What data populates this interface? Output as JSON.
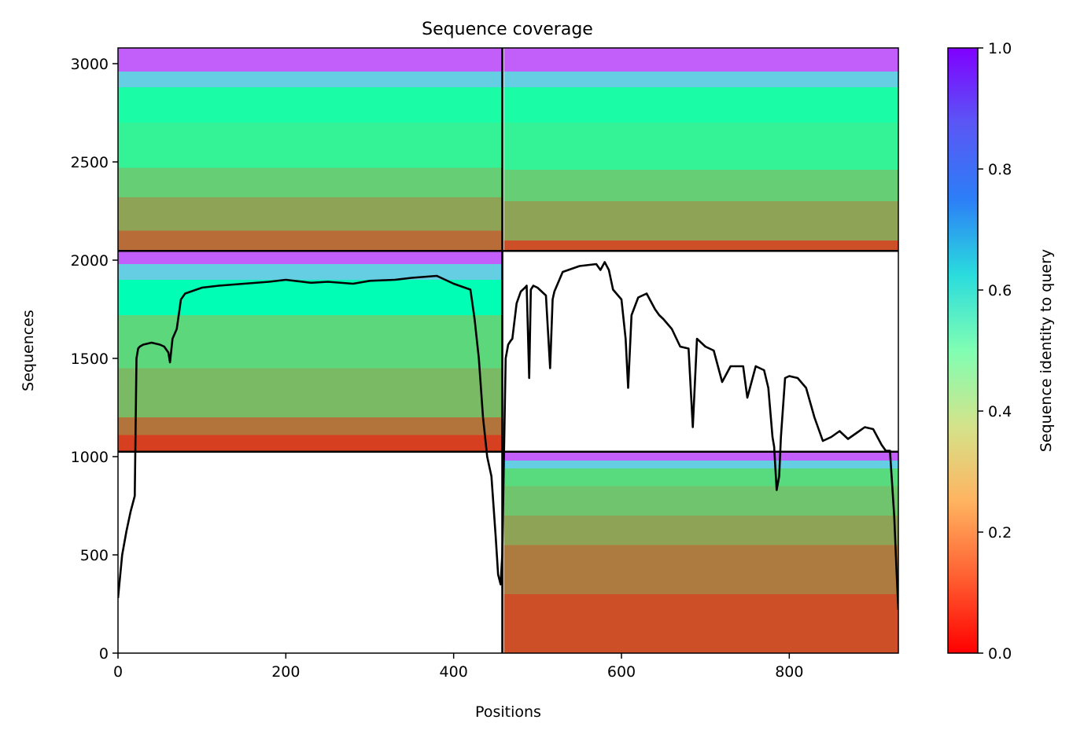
{
  "chart_data": {
    "type": "heatmap",
    "title": "Sequence coverage",
    "xlabel": "Positions",
    "ylabel": "Sequences",
    "xlim": [
      0,
      930
    ],
    "ylim": [
      0,
      3080
    ],
    "x_ticks": [
      0,
      200,
      400,
      600,
      800
    ],
    "y_ticks": [
      0,
      500,
      1000,
      1500,
      2000,
      2500,
      3000
    ],
    "colorbar": {
      "label": "Sequence identity to query",
      "range": [
        0.0,
        1.0
      ],
      "ticks": [
        "0.0",
        "0.2",
        "0.4",
        "0.6",
        "0.8",
        "1.0"
      ],
      "colormap": "rainbow_r"
    },
    "blocks": [
      {
        "name": "top-left",
        "x_range": [
          0,
          458
        ],
        "y_range": [
          2047,
          3080
        ],
        "bands": [
          {
            "y": [
              2047,
              2150
            ],
            "identity": 0.14
          },
          {
            "y": [
              2150,
              2320
            ],
            "identity": 0.22
          },
          {
            "y": [
              2320,
              2470
            ],
            "identity": 0.3
          },
          {
            "y": [
              2470,
              2700
            ],
            "identity": 0.4
          },
          {
            "y": [
              2700,
              2880
            ],
            "identity": 0.45
          },
          {
            "y": [
              2880,
              2960
            ],
            "identity": 0.7
          },
          {
            "y": [
              2960,
              3080
            ],
            "identity": 0.88
          }
        ]
      },
      {
        "name": "top-right",
        "x_range": [
          460,
          930
        ],
        "y_range": [
          2047,
          3080
        ],
        "bands": [
          {
            "y": [
              2047,
              2100
            ],
            "identity": 0.1
          },
          {
            "y": [
              2100,
              2300
            ],
            "identity": 0.22
          },
          {
            "y": [
              2300,
              2460
            ],
            "identity": 0.3
          },
          {
            "y": [
              2460,
              2700
            ],
            "identity": 0.4
          },
          {
            "y": [
              2700,
              2880
            ],
            "identity": 0.45
          },
          {
            "y": [
              2880,
              2960
            ],
            "identity": 0.7
          },
          {
            "y": [
              2960,
              3080
            ],
            "identity": 0.88
          }
        ]
      },
      {
        "name": "mid-left",
        "x_range": [
          0,
          458
        ],
        "y_range": [
          1025,
          2047
        ],
        "bands": [
          {
            "y": [
              1025,
              1110
            ],
            "identity": 0.08
          },
          {
            "y": [
              1110,
              1200
            ],
            "identity": 0.15
          },
          {
            "y": [
              1200,
              1450
            ],
            "identity": 0.26
          },
          {
            "y": [
              1450,
              1720
            ],
            "identity": 0.32
          },
          {
            "y": [
              1720,
              1900
            ],
            "identity": 0.5
          },
          {
            "y": [
              1900,
              1980
            ],
            "identity": 0.7
          },
          {
            "y": [
              1980,
              2047
            ],
            "identity": 0.88
          }
        ]
      },
      {
        "name": "bottom-right",
        "x_range": [
          460,
          930
        ],
        "y_range": [
          0,
          1025
        ],
        "bands": [
          {
            "y": [
              0,
              300
            ],
            "identity": 0.1
          },
          {
            "y": [
              300,
              550
            ],
            "identity": 0.16
          },
          {
            "y": [
              550,
              700
            ],
            "identity": 0.22
          },
          {
            "y": [
              700,
              850
            ],
            "identity": 0.28
          },
          {
            "y": [
              850,
              940
            ],
            "identity": 0.33
          },
          {
            "y": [
              940,
              980
            ],
            "identity": 0.7
          },
          {
            "y": [
              980,
              1025
            ],
            "identity": 0.88
          }
        ]
      }
    ],
    "block_dividers": {
      "x": [
        458
      ],
      "y": [
        1025,
        2047
      ]
    },
    "coverage_line": {
      "x": [
        0,
        5,
        10,
        15,
        20,
        22,
        24,
        26,
        30,
        40,
        50,
        55,
        60,
        62,
        65,
        70,
        75,
        80,
        100,
        120,
        150,
        180,
        200,
        230,
        250,
        280,
        300,
        330,
        350,
        380,
        400,
        420,
        425,
        430,
        435,
        440,
        445,
        450,
        453,
        456,
        458,
        460,
        462,
        465,
        468,
        470,
        475,
        480,
        485,
        487,
        490,
        492,
        495,
        500,
        510,
        515,
        518,
        520,
        530,
        550,
        570,
        575,
        580,
        585,
        590,
        600,
        605,
        608,
        612,
        620,
        630,
        640,
        645,
        650,
        660,
        670,
        680,
        685,
        690,
        700,
        710,
        720,
        730,
        740,
        745,
        750,
        760,
        770,
        775,
        780,
        782,
        785,
        788,
        790,
        795,
        800,
        810,
        820,
        830,
        840,
        850,
        860,
        870,
        880,
        890,
        900,
        910,
        915,
        920,
        925,
        928,
        930
      ],
      "y": [
        280,
        500,
        620,
        720,
        800,
        1500,
        1550,
        1560,
        1570,
        1580,
        1570,
        1560,
        1530,
        1480,
        1600,
        1650,
        1800,
        1830,
        1860,
        1870,
        1880,
        1890,
        1900,
        1885,
        1890,
        1880,
        1895,
        1900,
        1910,
        1920,
        1880,
        1850,
        1700,
        1500,
        1200,
        1000,
        900,
        600,
        400,
        350,
        500,
        1020,
        1500,
        1570,
        1590,
        1600,
        1780,
        1840,
        1860,
        1870,
        1400,
        1850,
        1870,
        1860,
        1820,
        1450,
        1800,
        1840,
        1940,
        1970,
        1980,
        1950,
        1990,
        1950,
        1850,
        1800,
        1600,
        1350,
        1720,
        1810,
        1830,
        1750,
        1720,
        1700,
        1650,
        1560,
        1550,
        1150,
        1600,
        1560,
        1540,
        1380,
        1460,
        1460,
        1460,
        1300,
        1460,
        1440,
        1350,
        1100,
        1050,
        830,
        900,
        1100,
        1400,
        1410,
        1400,
        1350,
        1200,
        1080,
        1100,
        1130,
        1090,
        1120,
        1150,
        1140,
        1060,
        1030,
        1030,
        700,
        400,
        220
      ]
    }
  }
}
